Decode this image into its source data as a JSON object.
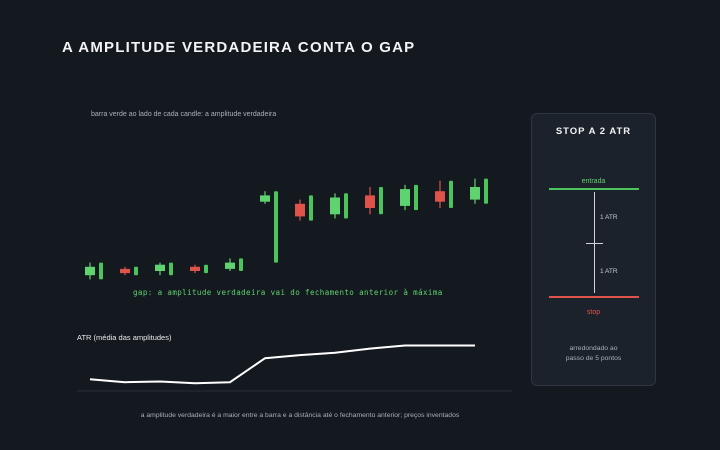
{
  "title": "A AMPLITUDE VERDADEIRA CONTA O GAP",
  "note": "barra verde ao lado de cada candle: a amplitude verdadeira",
  "gap_annotation": "gap: a amplitude verdadeira vai do fechamento anterior à máxima",
  "atr_label": "ATR (média das amplitudes)",
  "footer": "a amplitude verdadeira é a maior entre a barra e a distância até o fechamento anterior; preços inventados",
  "panel": {
    "title": "STOP A 2 ATR",
    "entry_label": "entrada",
    "atr_step_1": "1 ATR",
    "atr_step_2": "1 ATR",
    "stop_label": "stop",
    "rounding_note_line1": "arredondado ao",
    "rounding_note_line2": "passo de 5 pontos"
  },
  "colors": {
    "background": "#14181f",
    "up": "#5fd36f",
    "down": "#e0534a",
    "true_range_bar": "#4cc45c",
    "atr_line": "#ffffff"
  },
  "chart_data": {
    "type": "candlestick",
    "y_direction": "price",
    "candles": [
      {
        "index": 1,
        "open": 98,
        "close": 102,
        "high": 104,
        "low": 96,
        "direction": "up",
        "true_range": 8
      },
      {
        "index": 2,
        "open": 101,
        "close": 99,
        "high": 102,
        "low": 98,
        "direction": "down",
        "true_range": 4
      },
      {
        "index": 3,
        "open": 100,
        "close": 103,
        "high": 104,
        "low": 98,
        "direction": "up",
        "true_range": 6
      },
      {
        "index": 4,
        "open": 102,
        "close": 100,
        "high": 103,
        "low": 99,
        "direction": "down",
        "true_range": 4
      },
      {
        "index": 5,
        "open": 101,
        "close": 104,
        "high": 106,
        "low": 100,
        "direction": "up",
        "true_range": 6
      },
      {
        "index": 6,
        "open": 133,
        "close": 136,
        "high": 138,
        "low": 132,
        "direction": "up",
        "true_range": 38
      },
      {
        "index": 7,
        "open": 132,
        "close": 126,
        "high": 134,
        "low": 124,
        "direction": "down",
        "true_range": 12
      },
      {
        "index": 8,
        "open": 127,
        "close": 135,
        "high": 137,
        "low": 125,
        "direction": "up",
        "true_range": 12
      },
      {
        "index": 9,
        "open": 136,
        "close": 130,
        "high": 140,
        "low": 127,
        "direction": "down",
        "true_range": 13
      },
      {
        "index": 10,
        "open": 131,
        "close": 139,
        "high": 141,
        "low": 129,
        "direction": "up",
        "true_range": 12
      },
      {
        "index": 11,
        "open": 138,
        "close": 133,
        "high": 143,
        "low": 130,
        "direction": "down",
        "true_range": 13
      },
      {
        "index": 12,
        "open": 134,
        "close": 140,
        "high": 144,
        "low": 132,
        "direction": "up",
        "true_range": 12
      }
    ],
    "atr": [
      3.2,
      2.0,
      2.3,
      1.6,
      2.0,
      12.0,
      13.3,
      14.3,
      16.0,
      17.3,
      17.3,
      17.3
    ],
    "gap_after_index": 5
  }
}
